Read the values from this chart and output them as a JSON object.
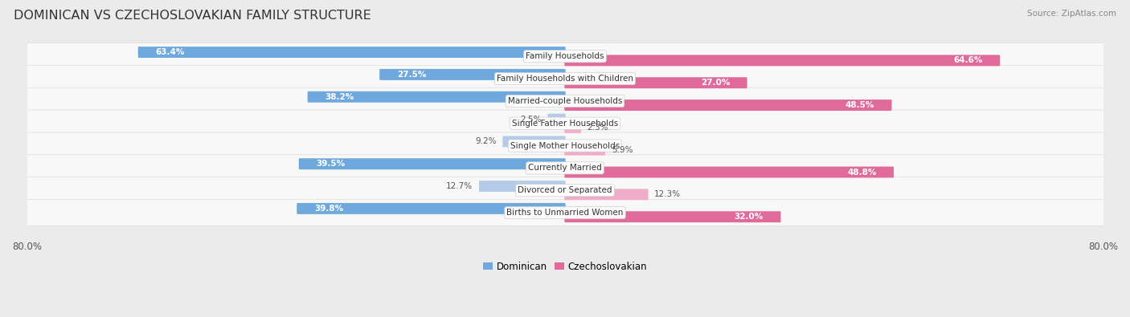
{
  "title": "DOMINICAN VS CZECHOSLOVAKIAN FAMILY STRUCTURE",
  "source": "Source: ZipAtlas.com",
  "categories": [
    "Family Households",
    "Family Households with Children",
    "Married-couple Households",
    "Single Father Households",
    "Single Mother Households",
    "Currently Married",
    "Divorced or Separated",
    "Births to Unmarried Women"
  ],
  "dominican": [
    63.4,
    27.5,
    38.2,
    2.5,
    9.2,
    39.5,
    12.7,
    39.8
  ],
  "czechoslovakian": [
    64.6,
    27.0,
    48.5,
    2.3,
    5.9,
    48.8,
    12.3,
    32.0
  ],
  "max_val": 80.0,
  "dominican_color": "#6FA8DC",
  "czechoslovakian_color": "#E06B9A",
  "dominican_light": "#B4CCE8",
  "czechoslovakian_light": "#F0ADCA",
  "bg_color": "#EBEBEB",
  "row_bg_color": "#F8F8F8",
  "title_fontsize": 11.5,
  "cat_fontsize": 7.5,
  "value_fontsize": 7.5,
  "legend_fontsize": 8.5,
  "source_fontsize": 7.5
}
